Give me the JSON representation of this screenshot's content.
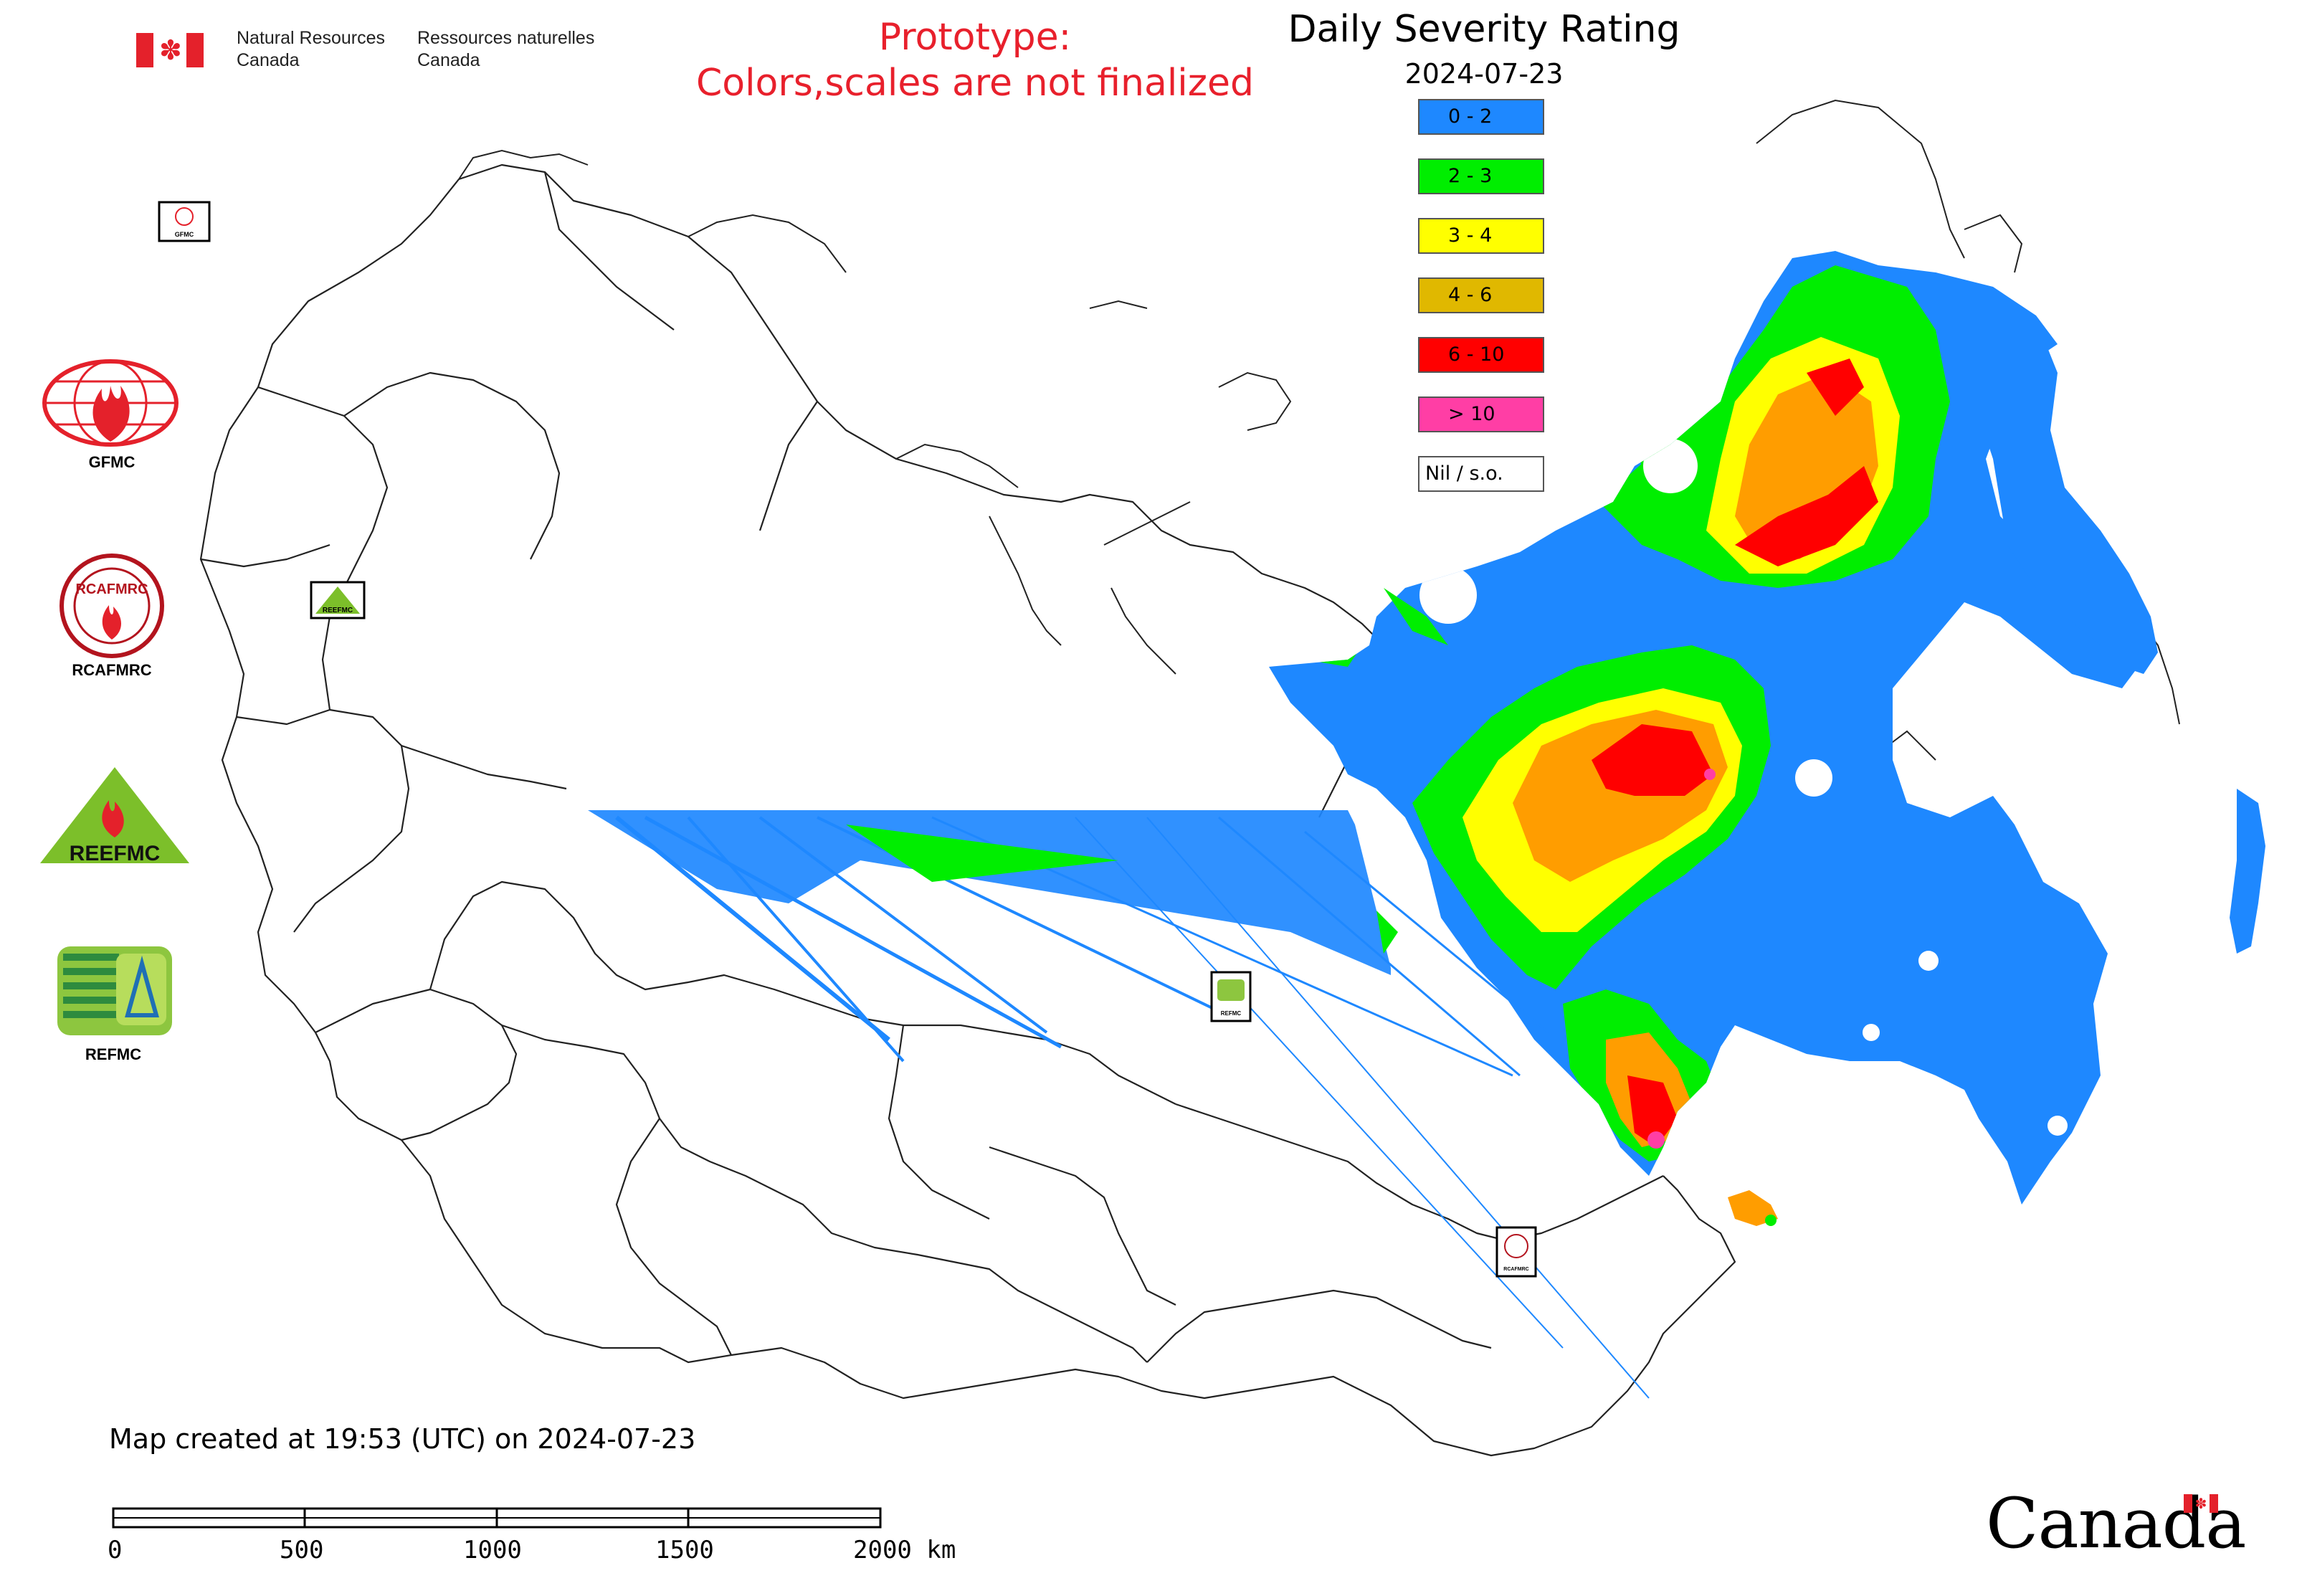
{
  "header": {
    "dept_en_line1": "Natural Resources",
    "dept_en_line2": "Canada",
    "dept_fr_line1": "Ressources naturelles",
    "dept_fr_line2": "Canada",
    "prototype_line1": "Prototype:",
    "prototype_line2": "Colors,scales are not finalized",
    "title": "Daily Severity Rating",
    "date": "2024-07-23"
  },
  "legend": [
    {
      "label": "0 - 2",
      "color": "#1e88ff"
    },
    {
      "label": "2 - 3",
      "color": "#00ee00"
    },
    {
      "label": "3 - 4",
      "color": "#ffff00"
    },
    {
      "label": "4 - 6",
      "color": "#e0b800"
    },
    {
      "label": "6 - 10",
      "color": "#ff0000"
    },
    {
      "label": "> 10",
      "color": "#ff3ea5"
    },
    {
      "label": "Nil / s.o.",
      "color": "#ffffff"
    }
  ],
  "logos": {
    "gfmc": "GFMC",
    "rcafmrc": "RCAFMRC",
    "reefmc_word": "REEFMC",
    "refmc": "REFMC",
    "rcafmrc_ring": "RCAFMRC",
    "marker_gfmc": "GFMC",
    "marker_reefmc": "REEFMC",
    "marker_refmc": "REFMC",
    "marker_rcafmrc": "RCAFMRC"
  },
  "footer": {
    "created": "Map created at 19:53 (UTC) on 2024-07-23",
    "scale_labels": [
      "0",
      "500",
      "1000",
      "1500",
      "2000 km"
    ],
    "wordmark": "Canada"
  },
  "colors": {
    "severity_0_2": "#1e88ff",
    "severity_2_3": "#00ee00",
    "severity_3_4": "#ffff00",
    "severity_4_6": "#e0b800",
    "severity_6_10": "#ff0000",
    "severity_gt10": "#ff3ea5",
    "prototype_text": "#e8202c"
  }
}
